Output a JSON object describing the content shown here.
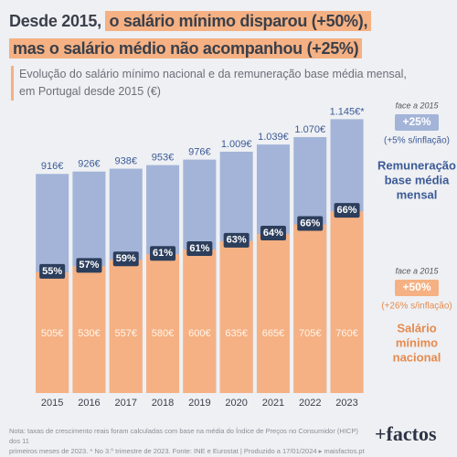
{
  "chart_data": {
    "type": "overlap-bar",
    "title_parts": [
      "Desde 2015,",
      "o salário mínimo disparou (+50%),",
      "mas o salário médio não acompanhou (+25%)"
    ],
    "subtitle": [
      "Evolução do salário mínimo nacional e da remuneração base média mensal,",
      "em Portugal desde 2015 (€)"
    ],
    "categories": [
      "2015",
      "2016",
      "2017",
      "2018",
      "2019",
      "2020",
      "2021",
      "2022",
      "2023"
    ],
    "ylim": [
      0,
      1200
    ],
    "series": [
      {
        "name": [
          "Remuneração",
          "base média",
          "mensal"
        ],
        "color": "#a3b4d8",
        "values": [
          916,
          926,
          938,
          953,
          976,
          1009,
          1039,
          1070,
          1145
        ],
        "value_labels": [
          "916€",
          "926€",
          "938€",
          "953€",
          "976€",
          "1.009€",
          "1.039€",
          "1.070€",
          "1.145€*"
        ],
        "note": "face a 2015",
        "change": "+25%",
        "real_change": "(+5% s/inflação)"
      },
      {
        "name": [
          "Salário",
          "mínimo",
          "nacional"
        ],
        "color": "#f5b183",
        "values": [
          505,
          530,
          557,
          580,
          600,
          635,
          665,
          705,
          760
        ],
        "value_labels": [
          "505€",
          "530€",
          "557€",
          "580€",
          "600€",
          "635€",
          "665€",
          "705€",
          "760€"
        ],
        "note": "face a 2015",
        "change": "+50%",
        "real_change": "(+26% s/inflação)"
      }
    ],
    "ratio_labels": [
      "55%",
      "57%",
      "59%",
      "61%",
      "61%",
      "63%",
      "64%",
      "66%",
      "66%"
    ],
    "footnote": [
      "Nota: taxas de crescimento reais foram calculadas com base na média do Índice de Preços no Consumidor (HICP) dos 11",
      "primeiros meses de 2023. * No 3.º trimestre de 2023. Fonte: INE e Eurostat | Produzido a 17/01/2024 ▸ maisfactos.pt"
    ],
    "logo": "+factos"
  }
}
